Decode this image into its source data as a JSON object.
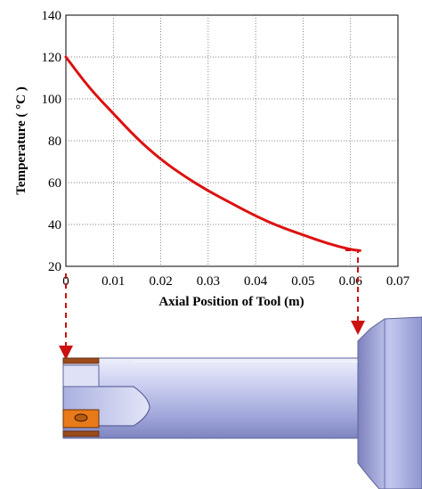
{
  "chart_data": {
    "type": "line",
    "xlabel": "Axial Position of Tool (m)",
    "ylabel": "Temperature ( °C )",
    "xlim": [
      0,
      0.07
    ],
    "ylim": [
      20,
      140
    ],
    "xticks": [
      0,
      0.01,
      0.02,
      0.03,
      0.04,
      0.05,
      0.06,
      0.07
    ],
    "yticks": [
      20,
      40,
      60,
      80,
      100,
      120,
      140
    ],
    "xtick_labels": [
      "0",
      "0.01",
      "0.02",
      "0.03",
      "0.04",
      "0.05",
      "0.06",
      "0.07"
    ],
    "ytick_labels": [
      "20",
      "40",
      "60",
      "80",
      "100",
      "120",
      "140"
    ],
    "grid": true,
    "series": [
      {
        "color": "#dd1111",
        "x": [
          0,
          0.005,
          0.01,
          0.015,
          0.02,
          0.025,
          0.03,
          0.035,
          0.04,
          0.045,
          0.05,
          0.055,
          0.06,
          0.062
        ],
        "y": [
          120,
          105,
          93,
          81,
          71,
          63,
          56,
          50,
          44,
          39,
          35,
          31,
          28,
          27.5
        ]
      }
    ]
  },
  "colors": {
    "curve": "#dd1111",
    "arrow": "#cc1111",
    "tool_body": "#b8bde8",
    "insert": "#e87a1a"
  }
}
